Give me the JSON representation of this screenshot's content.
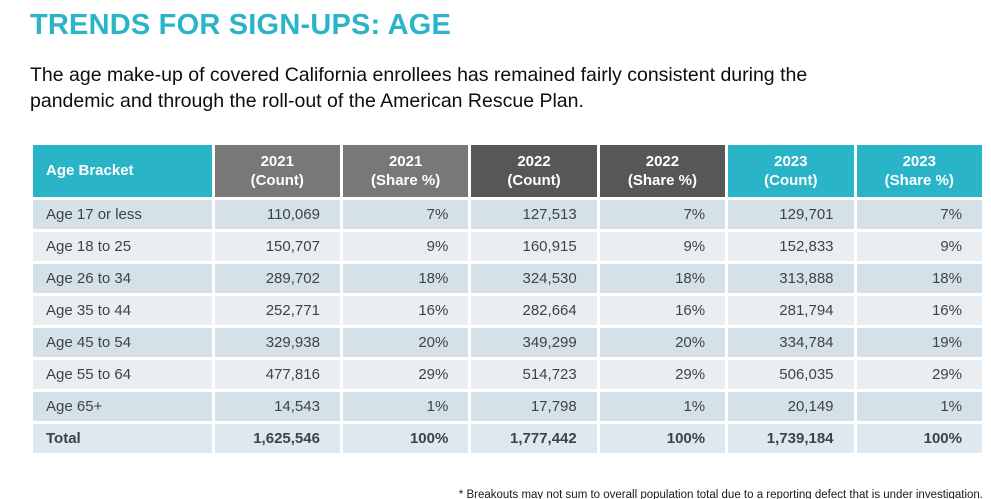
{
  "slide": {
    "title": "TRENDS FOR SIGN-UPS: AGE",
    "subtitle": "The age make-up of covered California enrollees has remained fairly consistent during the\npandemic and through the roll-out of the American Rescue Plan.",
    "footnote": "* Breakouts may not sum to overall population total due to a reporting defect that is under investigation."
  },
  "colors": {
    "accent_teal": "#2ab4c8",
    "header_gray_2021": "#787878",
    "header_gray_2022": "#575757",
    "row_stripe_dark": "#d5e1e9",
    "row_stripe_light": "#e8eef2",
    "total_row_bg": "#dfe8ee",
    "body_text": "#3e4347"
  },
  "table": {
    "headers": [
      {
        "label": "Age Bracket"
      },
      {
        "label": "2021\n(Count)"
      },
      {
        "label": "2021\n(Share %)"
      },
      {
        "label": "2022\n(Count)"
      },
      {
        "label": "2022\n(Share %)"
      },
      {
        "label": "2023\n(Count)"
      },
      {
        "label": "2023\n(Share %)"
      }
    ],
    "rows": [
      {
        "label": "Age 17 or less",
        "values": [
          "110,069",
          "7%",
          "127,513",
          "7%",
          "129,701",
          "7%"
        ]
      },
      {
        "label": "Age 18 to 25",
        "values": [
          "150,707",
          "9%",
          "160,915",
          "9%",
          "152,833",
          "9%"
        ]
      },
      {
        "label": "Age 26 to 34",
        "values": [
          "289,702",
          "18%",
          "324,530",
          "18%",
          "313,888",
          "18%"
        ]
      },
      {
        "label": "Age 35 to 44",
        "values": [
          "252,771",
          "16%",
          "282,664",
          "16%",
          "281,794",
          "16%"
        ]
      },
      {
        "label": "Age 45 to 54",
        "values": [
          "329,938",
          "20%",
          "349,299",
          "20%",
          "334,784",
          "19%"
        ]
      },
      {
        "label": "Age 55 to 64",
        "values": [
          "477,816",
          "29%",
          "514,723",
          "29%",
          "506,035",
          "29%"
        ]
      },
      {
        "label": "Age 65+",
        "values": [
          "14,543",
          "1%",
          "17,798",
          "1%",
          "20,149",
          "1%"
        ]
      }
    ],
    "total": {
      "label": "Total",
      "values": [
        "1,625,546",
        "100%",
        "1,777,442",
        "100%",
        "1,739,184",
        "100%"
      ]
    }
  },
  "chart_data": {
    "type": "table",
    "title": "TRENDS FOR SIGN-UPS: AGE",
    "categories": [
      "Age 17 or less",
      "Age 18 to 25",
      "Age 26 to 34",
      "Age 35 to 44",
      "Age 45 to 54",
      "Age 55 to 64",
      "Age 65+",
      "Total"
    ],
    "series": [
      {
        "name": "2021 (Count)",
        "values": [
          110069,
          150707,
          289702,
          252771,
          329938,
          477816,
          14543,
          1625546
        ]
      },
      {
        "name": "2021 (Share %)",
        "values": [
          7,
          9,
          18,
          16,
          20,
          29,
          1,
          100
        ]
      },
      {
        "name": "2022 (Count)",
        "values": [
          127513,
          160915,
          324530,
          282664,
          349299,
          514723,
          17798,
          1777442
        ]
      },
      {
        "name": "2022 (Share %)",
        "values": [
          7,
          9,
          18,
          16,
          20,
          29,
          1,
          100
        ]
      },
      {
        "name": "2023 (Count)",
        "values": [
          129701,
          152833,
          313888,
          281794,
          334784,
          506035,
          20149,
          1739184
        ]
      },
      {
        "name": "2023 (Share %)",
        "values": [
          7,
          9,
          18,
          16,
          19,
          29,
          1,
          100
        ]
      }
    ],
    "footnote": "* Breakouts may not sum to overall population total due to a reporting defect that is under investigation."
  }
}
